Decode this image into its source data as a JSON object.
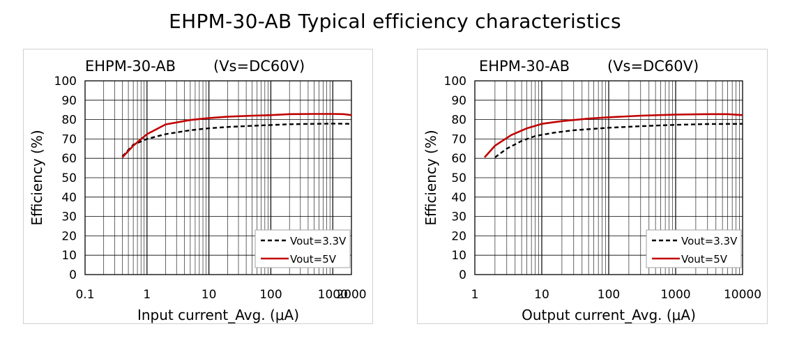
{
  "title": "EHPM-30-AB Typical efficiency characteristics",
  "chart_data": [
    {
      "type": "line",
      "title": "EHPM-30-AB",
      "subtitle": "(Vs=DC60V)",
      "xlabel": "Input current_Avg. (μA)",
      "ylabel": "Efficiency (%)",
      "xscale": "log",
      "xlim": [
        0.1,
        2000
      ],
      "ylim": [
        0,
        100
      ],
      "xticks": [
        0.1,
        1,
        10,
        100,
        1000
      ],
      "xtick_labels": [
        "0.1",
        "1",
        "10",
        "100",
        "1000"
      ],
      "extra_xtick": 2000,
      "extra_xtick_label": "2000",
      "yticks": [
        0,
        10,
        20,
        30,
        40,
        50,
        60,
        70,
        80,
        90,
        100
      ],
      "grid": true,
      "legend_position": "bottom-right",
      "series": [
        {
          "name": "Vout=3.3V",
          "color": "#000000",
          "style": "dashed",
          "x": [
            0.4,
            0.6,
            1,
            2,
            5,
            10,
            20,
            50,
            100,
            200,
            500,
            1000,
            2000
          ],
          "y": [
            61,
            67,
            70,
            72.5,
            74.5,
            75.5,
            76.2,
            76.8,
            77.2,
            77.6,
            77.8,
            77.9,
            77.8
          ]
        },
        {
          "name": "Vout=5V",
          "color": "#c00000",
          "style": "solid",
          "x": [
            0.4,
            0.6,
            1,
            2,
            5,
            10,
            20,
            50,
            100,
            200,
            500,
            1000,
            1500,
            2000
          ],
          "y": [
            60.5,
            66.5,
            72.5,
            77.5,
            79.8,
            80.8,
            81.5,
            82,
            82.3,
            82.8,
            82.9,
            82.9,
            82.8,
            82.3
          ]
        }
      ]
    },
    {
      "type": "line",
      "title": "EHPM-30-AB",
      "subtitle": "(Vs=DC60V)",
      "xlabel": "Output current_Avg. (μA)",
      "ylabel": "Efficiency (%)",
      "xscale": "log",
      "xlim": [
        1,
        10000
      ],
      "ylim": [
        0,
        100
      ],
      "xticks": [
        1,
        10,
        100,
        1000,
        10000
      ],
      "xtick_labels": [
        "1",
        "10",
        "100",
        "1000",
        "10000"
      ],
      "yticks": [
        0,
        10,
        20,
        30,
        40,
        50,
        60,
        70,
        80,
        90,
        100
      ],
      "grid": true,
      "legend_position": "bottom-right",
      "series": [
        {
          "name": "Vout=3.3V",
          "color": "#000000",
          "style": "dashed",
          "x": [
            2,
            3,
            5,
            8,
            15,
            30,
            100,
            300,
            1000,
            3000,
            10000
          ],
          "y": [
            60.5,
            65,
            69,
            71.5,
            73.2,
            74.5,
            75.8,
            76.6,
            77.3,
            77.7,
            77.8
          ]
        },
        {
          "name": "Vout=5V",
          "color": "#c00000",
          "style": "solid",
          "x": [
            1.4,
            2,
            3.5,
            6,
            10,
            20,
            50,
            100,
            300,
            1000,
            3000,
            6000,
            10000
          ],
          "y": [
            60.5,
            66.5,
            72,
            75.5,
            77.8,
            79.2,
            80.5,
            81.2,
            82,
            82.6,
            82.8,
            82.8,
            82.3
          ]
        }
      ]
    }
  ]
}
